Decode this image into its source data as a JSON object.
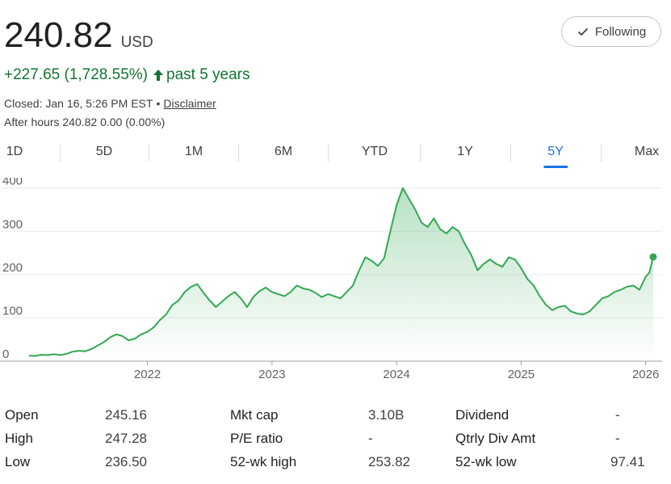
{
  "quote": {
    "price": "240.82",
    "currency": "USD",
    "change": "+227.65 (1,728.55%)",
    "period": "past 5 years",
    "closed": "Closed: Jan 16, 5:26 PM EST",
    "separator": "•",
    "disclaimer": "Disclaimer",
    "after_hours": "After hours 240.82 0.00 (0.00%)"
  },
  "follow_button": {
    "label": "Following",
    "icon": "check-icon"
  },
  "tabs": [
    {
      "label": "1D"
    },
    {
      "label": "5D"
    },
    {
      "label": "1M"
    },
    {
      "label": "6M"
    },
    {
      "label": "YTD"
    },
    {
      "label": "1Y"
    },
    {
      "label": "5Y",
      "active": true
    },
    {
      "label": "Max"
    }
  ],
  "colors": {
    "accent": "#1a73e8",
    "positive": "#137333",
    "line": "#34a853"
  },
  "chart_data": {
    "type": "area",
    "ylim": [
      0,
      420
    ],
    "xlim": [
      2021.05,
      2026.08
    ],
    "y_ticks": [
      "0",
      "100",
      "200",
      "300",
      "400"
    ],
    "x_ticks": [
      "2022",
      "2023",
      "2024",
      "2025",
      "2026"
    ],
    "grid": true,
    "series": [
      {
        "points": [
          [
            2021.05,
            13
          ],
          [
            2021.1,
            12
          ],
          [
            2021.15,
            15
          ],
          [
            2021.2,
            14
          ],
          [
            2021.25,
            16
          ],
          [
            2021.3,
            14
          ],
          [
            2021.35,
            17
          ],
          [
            2021.4,
            22
          ],
          [
            2021.45,
            24
          ],
          [
            2021.5,
            23
          ],
          [
            2021.55,
            28
          ],
          [
            2021.6,
            36
          ],
          [
            2021.65,
            44
          ],
          [
            2021.7,
            55
          ],
          [
            2021.75,
            62
          ],
          [
            2021.8,
            58
          ],
          [
            2021.85,
            48
          ],
          [
            2021.9,
            52
          ],
          [
            2021.95,
            62
          ],
          [
            2022.0,
            68
          ],
          [
            2022.05,
            78
          ],
          [
            2022.1,
            95
          ],
          [
            2022.15,
            108
          ],
          [
            2022.2,
            130
          ],
          [
            2022.25,
            140
          ],
          [
            2022.3,
            160
          ],
          [
            2022.35,
            172
          ],
          [
            2022.4,
            178
          ],
          [
            2022.45,
            158
          ],
          [
            2022.5,
            140
          ],
          [
            2022.55,
            125
          ],
          [
            2022.6,
            138
          ],
          [
            2022.65,
            150
          ],
          [
            2022.7,
            160
          ],
          [
            2022.75,
            145
          ],
          [
            2022.8,
            125
          ],
          [
            2022.85,
            148
          ],
          [
            2022.9,
            162
          ],
          [
            2022.95,
            170
          ],
          [
            2023.0,
            160
          ],
          [
            2023.05,
            155
          ],
          [
            2023.1,
            150
          ],
          [
            2023.15,
            160
          ],
          [
            2023.2,
            175
          ],
          [
            2023.25,
            168
          ],
          [
            2023.3,
            165
          ],
          [
            2023.35,
            158
          ],
          [
            2023.4,
            148
          ],
          [
            2023.45,
            155
          ],
          [
            2023.5,
            150
          ],
          [
            2023.55,
            145
          ],
          [
            2023.6,
            160
          ],
          [
            2023.65,
            175
          ],
          [
            2023.7,
            210
          ],
          [
            2023.75,
            240
          ],
          [
            2023.8,
            232
          ],
          [
            2023.85,
            220
          ],
          [
            2023.9,
            238
          ],
          [
            2023.95,
            300
          ],
          [
            2024.0,
            360
          ],
          [
            2024.05,
            400
          ],
          [
            2024.1,
            375
          ],
          [
            2024.15,
            350
          ],
          [
            2024.2,
            320
          ],
          [
            2024.25,
            310
          ],
          [
            2024.3,
            330
          ],
          [
            2024.35,
            305
          ],
          [
            2024.4,
            295
          ],
          [
            2024.45,
            310
          ],
          [
            2024.5,
            300
          ],
          [
            2024.55,
            270
          ],
          [
            2024.6,
            245
          ],
          [
            2024.65,
            210
          ],
          [
            2024.7,
            225
          ],
          [
            2024.75,
            235
          ],
          [
            2024.8,
            225
          ],
          [
            2024.85,
            218
          ],
          [
            2024.9,
            240
          ],
          [
            2024.95,
            235
          ],
          [
            2025.0,
            215
          ],
          [
            2025.05,
            190
          ],
          [
            2025.1,
            175
          ],
          [
            2025.15,
            150
          ],
          [
            2025.2,
            130
          ],
          [
            2025.25,
            118
          ],
          [
            2025.3,
            125
          ],
          [
            2025.35,
            128
          ],
          [
            2025.4,
            115
          ],
          [
            2025.45,
            110
          ],
          [
            2025.5,
            108
          ],
          [
            2025.55,
            115
          ],
          [
            2025.6,
            130
          ],
          [
            2025.65,
            145
          ],
          [
            2025.7,
            150
          ],
          [
            2025.75,
            160
          ],
          [
            2025.8,
            165
          ],
          [
            2025.85,
            172
          ],
          [
            2025.9,
            175
          ],
          [
            2025.95,
            165
          ],
          [
            2026.0,
            195
          ],
          [
            2026.03,
            205
          ],
          [
            2026.06,
            240.82
          ]
        ]
      }
    ]
  },
  "stats": [
    {
      "label": "Open",
      "value": "245.16"
    },
    {
      "label": "High",
      "value": "247.28"
    },
    {
      "label": "Low",
      "value": "236.50"
    },
    {
      "label": "Mkt cap",
      "value": "3.10B"
    },
    {
      "label": "P/E ratio",
      "value": "-"
    },
    {
      "label": "52-wk high",
      "value": "253.82"
    },
    {
      "label": "Dividend",
      "value": "-"
    },
    {
      "label": "Qtrly Div Amt",
      "value": "-"
    },
    {
      "label": "52-wk low",
      "value": "97.41"
    }
  ]
}
